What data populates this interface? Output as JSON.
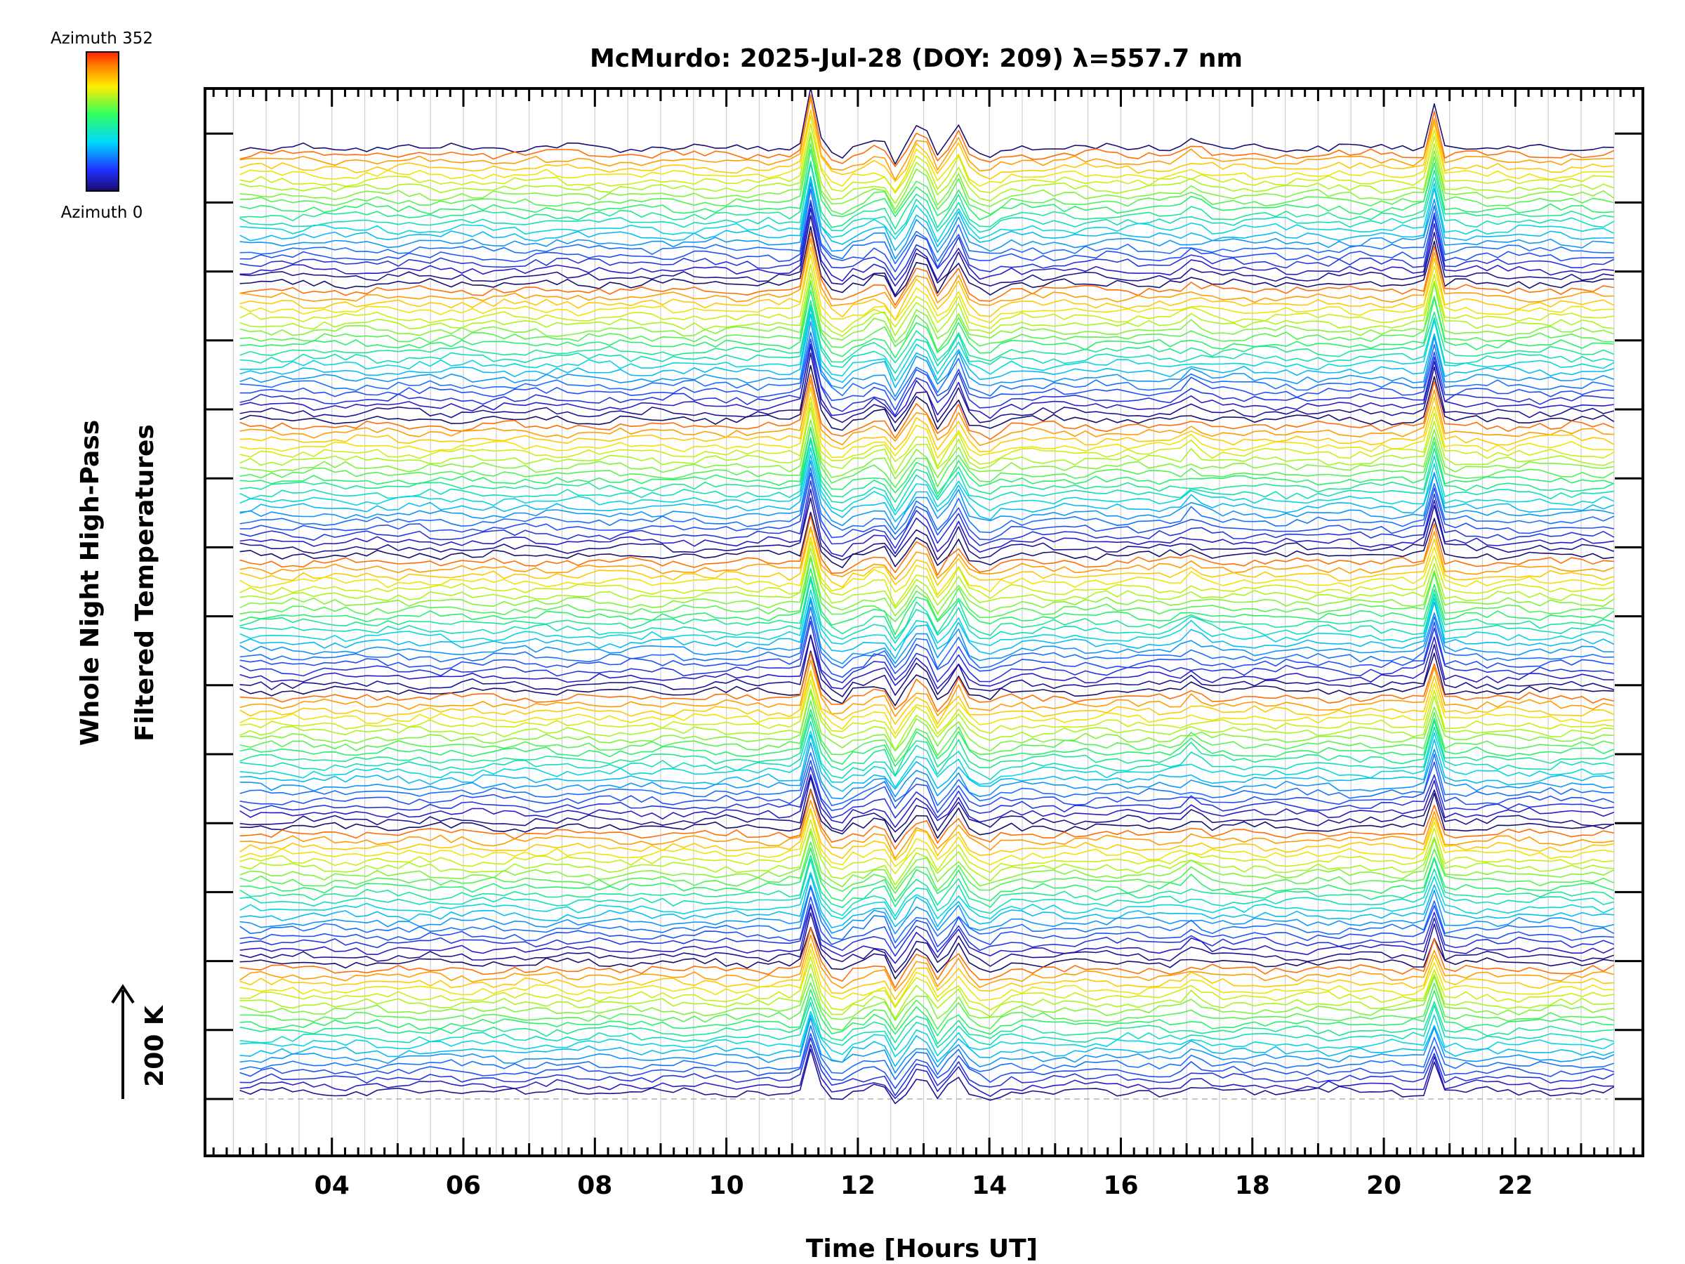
{
  "chart_data": {
    "type": "line",
    "title": "McMurdo: 2025-Jul-28 (DOY: 209) λ=557.7 nm",
    "xlabel": "Time [Hours UT]",
    "ylabel_line1": "Whole Night High-Pass",
    "ylabel_line2": "Filtered Temperatures",
    "xlim": [
      2.07,
      23.94
    ],
    "x_ticks": [
      4,
      6,
      8,
      10,
      12,
      14,
      16,
      18,
      20,
      22
    ],
    "x_tick_labels": [
      "04",
      "06",
      "08",
      "10",
      "12",
      "14",
      "16",
      "18",
      "20",
      "22"
    ],
    "x_range_data": [
      2.6,
      23.5
    ],
    "scale_label": "200 K",
    "colorbar": {
      "top_label": "Azimuth 352",
      "bottom_label": "Azimuth 0",
      "colormap": "rainbow (blue → cyan → green → yellow → red)"
    },
    "grid": true,
    "series_count": 140,
    "series_groups": 7,
    "series_per_group": 20,
    "spike_events_hours": [
      11.3,
      12.33,
      12.95,
      13.5,
      17.1,
      20.75
    ]
  },
  "colors": {
    "background": "#ffffff",
    "axes": "#000000",
    "grid": "#d0d0d0",
    "baseline": "#b0b0b0"
  }
}
